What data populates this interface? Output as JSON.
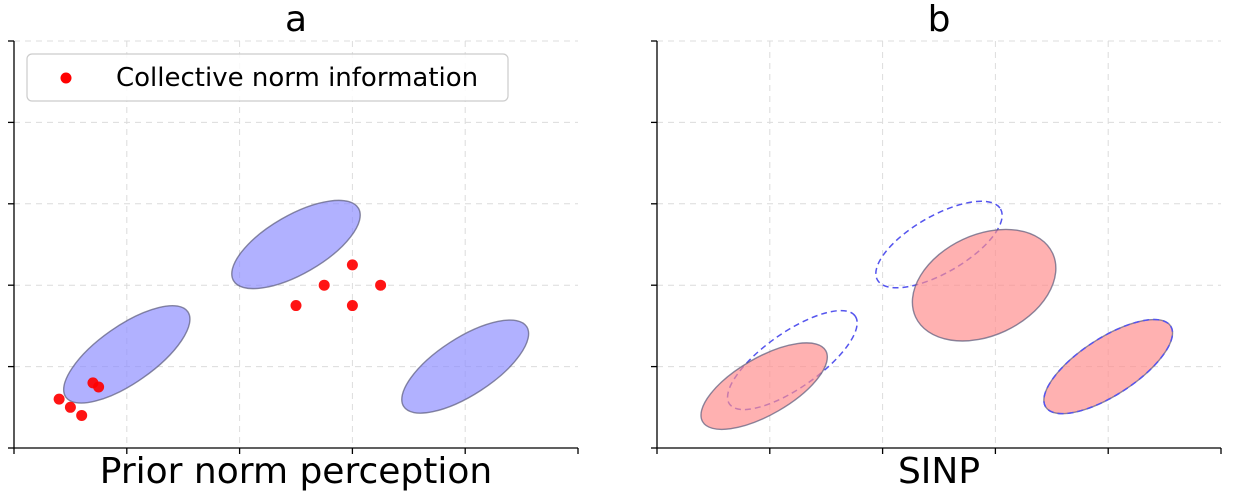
{
  "chart_data": [
    {
      "type": "scatter",
      "title": "a",
      "xlabel": "Prior norm perception",
      "ylabel": "",
      "xlim": [
        0,
        5
      ],
      "ylim": [
        0,
        5
      ],
      "grid": true,
      "legend": {
        "placement": "top-left",
        "entries": [
          "Collective norm information"
        ]
      },
      "ellipses": [
        {
          "name": "prior-low",
          "cx": 1.0,
          "cy": 1.15,
          "rx": 0.66,
          "ry": 0.35,
          "angle": 35,
          "color": "#8c8cff",
          "style": "filled"
        },
        {
          "name": "prior-mid",
          "cx": 2.5,
          "cy": 2.5,
          "rx": 0.64,
          "ry": 0.36,
          "angle": 30,
          "color": "#8c8cff",
          "style": "filled"
        },
        {
          "name": "prior-high",
          "cx": 4.0,
          "cy": 1.0,
          "rx": 0.65,
          "ry": 0.35,
          "angle": 33,
          "color": "#8c8cff",
          "style": "filled"
        }
      ],
      "series": [
        {
          "name": "Collective norm information",
          "color": "#ff0000",
          "x": [
            0.4,
            0.5,
            0.6,
            0.7,
            0.75,
            2.5,
            2.75,
            3.0,
            3.25,
            3.0
          ],
          "y": [
            0.6,
            0.5,
            0.4,
            0.8,
            0.75,
            1.75,
            2.0,
            2.25,
            2.0,
            1.75
          ]
        }
      ]
    },
    {
      "type": "scatter",
      "title": "b",
      "xlabel": "SINP",
      "ylabel": "",
      "xlim": [
        0,
        5
      ],
      "ylim": [
        0,
        5
      ],
      "grid": true,
      "ellipses": [
        {
          "name": "prior-low-outline",
          "cx": 1.2,
          "cy": 1.08,
          "rx": 0.68,
          "ry": 0.34,
          "angle": 35,
          "color": "#5555ee",
          "style": "dashed"
        },
        {
          "name": "prior-mid-outline",
          "cx": 2.5,
          "cy": 2.5,
          "rx": 0.63,
          "ry": 0.35,
          "angle": 30,
          "color": "#5555ee",
          "style": "dashed"
        },
        {
          "name": "sinp-low",
          "cx": 0.95,
          "cy": 0.76,
          "rx": 0.63,
          "ry": 0.35,
          "angle": 30,
          "color": "#ff8c8c",
          "style": "filled"
        },
        {
          "name": "sinp-mid",
          "cx": 2.9,
          "cy": 2.0,
          "rx": 0.67,
          "ry": 0.62,
          "angle": 25,
          "color": "#ff8c8c",
          "style": "filled"
        },
        {
          "name": "sinp-high",
          "cx": 4.0,
          "cy": 1.0,
          "rx": 0.66,
          "ry": 0.35,
          "angle": 33,
          "color": "#ff8c8c",
          "style": "filled"
        },
        {
          "name": "sinp-high-outline",
          "cx": 4.0,
          "cy": 1.0,
          "rx": 0.66,
          "ry": 0.35,
          "angle": 33,
          "color": "#5555ee",
          "style": "dashed"
        }
      ],
      "series": []
    }
  ]
}
